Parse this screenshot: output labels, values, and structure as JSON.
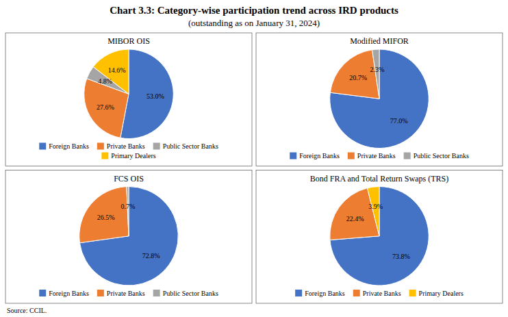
{
  "title": "Chart 3.3: Category-wise participation trend across IRD products",
  "subtitle": "(outstanding as on January 31, 2024)",
  "source": "Source: CCIL.",
  "chart_data": [
    {
      "type": "pie",
      "title": "MIBOR OIS",
      "categories": [
        "Foreign Banks",
        "Private Banks",
        "Public Sector Banks",
        "Primary Dealers"
      ],
      "values": [
        53.0,
        27.6,
        4.8,
        14.6
      ],
      "value_labels": [
        "53.0%",
        "27.6%",
        "4.8%",
        "14.6%"
      ],
      "colors": [
        "#4472C4",
        "#ED7D31",
        "#A5A5A5",
        "#FFC000"
      ],
      "data_labels": true,
      "legend": "bottom"
    },
    {
      "type": "pie",
      "title": "Modified MIFOR",
      "categories": [
        "Foreign Banks",
        "Private Banks",
        "Public Sector Banks"
      ],
      "values": [
        77.0,
        20.7,
        2.3
      ],
      "value_labels": [
        "77.0%",
        "20.7%",
        "2.3%"
      ],
      "colors": [
        "#4472C4",
        "#ED7D31",
        "#A5A5A5"
      ],
      "data_labels": true,
      "legend": "bottom"
    },
    {
      "type": "pie",
      "title": "FCS OIS",
      "categories": [
        "Foreign Banks",
        "Private Banks",
        "Public Sector Banks"
      ],
      "values": [
        72.8,
        26.5,
        0.7
      ],
      "value_labels": [
        "72.8%",
        "26.5%",
        "0.7%"
      ],
      "colors": [
        "#4472C4",
        "#ED7D31",
        "#A5A5A5"
      ],
      "data_labels": true,
      "legend": "bottom"
    },
    {
      "type": "pie",
      "title": "Bond FRA and Total Return Swaps (TRS)",
      "categories": [
        "Foreign Banks",
        "Private Banks",
        "Primary Dealers"
      ],
      "values": [
        73.8,
        22.4,
        3.9
      ],
      "value_labels": [
        "73.8%",
        "22.4%",
        "3.9%"
      ],
      "colors": [
        "#4472C4",
        "#ED7D31",
        "#FFC000"
      ],
      "data_labels": true,
      "legend": "bottom"
    }
  ]
}
